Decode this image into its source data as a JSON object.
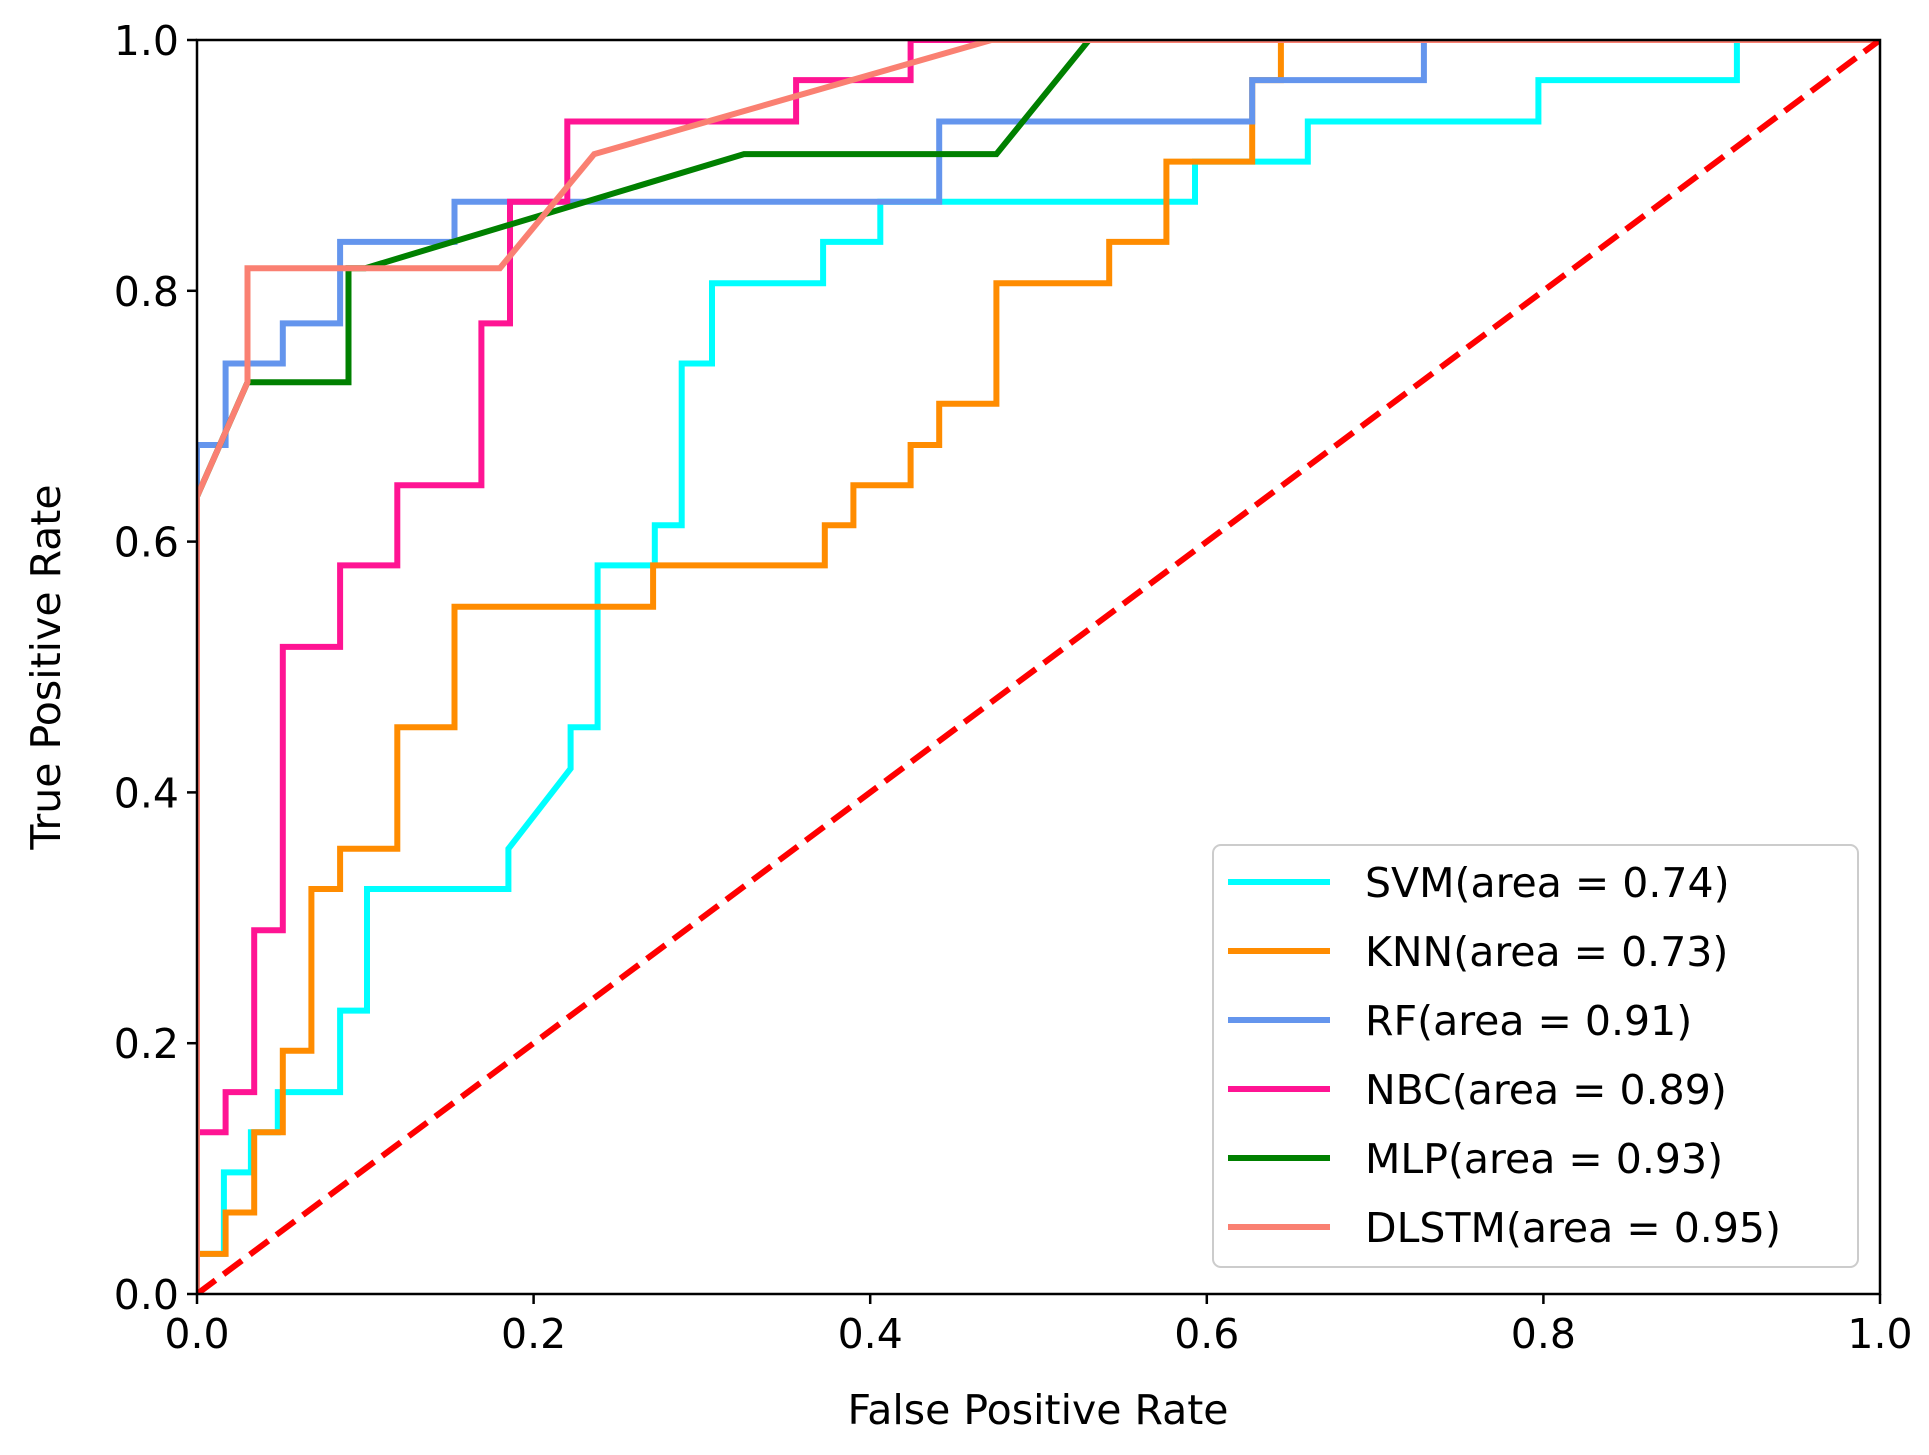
{
  "chart_data": {
    "type": "line",
    "title": "",
    "xlabel": "False Positive Rate",
    "ylabel": "True Positive Rate",
    "xlim": [
      0.0,
      1.0
    ],
    "ylim": [
      0.0,
      1.0
    ],
    "xticks": [
      "0.0",
      "0.2",
      "0.4",
      "0.6",
      "0.8",
      "1.0"
    ],
    "yticks": [
      "0.0",
      "0.2",
      "0.4",
      "0.6",
      "0.8",
      "1.0"
    ],
    "grid": false,
    "legend_position": "lower-right",
    "series": [
      {
        "name": "SVM(area = 0.74)",
        "color": "#00ffff",
        "x": [
          0.0,
          0.0,
          0.016,
          0.016,
          0.032,
          0.032,
          0.048,
          0.048,
          0.085,
          0.085,
          0.101,
          0.101,
          0.185,
          0.185,
          0.222,
          0.222,
          0.238,
          0.238,
          0.272,
          0.272,
          0.288,
          0.288,
          0.306,
          0.306,
          0.372,
          0.372,
          0.406,
          0.406,
          0.593,
          0.593,
          0.66,
          0.66,
          0.797,
          0.797,
          0.915,
          0.915,
          1.0
        ],
        "y": [
          0.0,
          0.032,
          0.032,
          0.097,
          0.097,
          0.129,
          0.129,
          0.161,
          0.161,
          0.226,
          0.226,
          0.323,
          0.323,
          0.355,
          0.419,
          0.452,
          0.452,
          0.581,
          0.581,
          0.613,
          0.613,
          0.742,
          0.742,
          0.806,
          0.806,
          0.839,
          0.839,
          0.871,
          0.871,
          0.903,
          0.903,
          0.935,
          0.935,
          0.968,
          0.968,
          1.0,
          1.0
        ]
      },
      {
        "name": "KNN(area = 0.73)",
        "color": "#ff8c00",
        "x": [
          0.0,
          0.0,
          0.017,
          0.017,
          0.034,
          0.034,
          0.051,
          0.051,
          0.068,
          0.068,
          0.085,
          0.085,
          0.119,
          0.119,
          0.153,
          0.153,
          0.271,
          0.271,
          0.373,
          0.373,
          0.39,
          0.39,
          0.424,
          0.424,
          0.441,
          0.441,
          0.475,
          0.475,
          0.542,
          0.542,
          0.576,
          0.576,
          0.627,
          0.627,
          0.644,
          0.644,
          1.0
        ],
        "y": [
          0.0,
          0.032,
          0.032,
          0.065,
          0.065,
          0.129,
          0.129,
          0.194,
          0.194,
          0.323,
          0.323,
          0.355,
          0.355,
          0.452,
          0.452,
          0.548,
          0.548,
          0.581,
          0.581,
          0.613,
          0.613,
          0.645,
          0.645,
          0.677,
          0.677,
          0.71,
          0.71,
          0.806,
          0.806,
          0.839,
          0.839,
          0.903,
          0.903,
          0.968,
          0.968,
          1.0,
          1.0
        ]
      },
      {
        "name": "RF(area = 0.91)",
        "color": "#6495ed",
        "x": [
          0.0,
          0.0,
          0.017,
          0.017,
          0.051,
          0.051,
          0.085,
          0.085,
          0.153,
          0.153,
          0.441,
          0.441,
          0.627,
          0.627,
          0.729,
          0.729,
          1.0
        ],
        "y": [
          0.0,
          0.677,
          0.677,
          0.742,
          0.742,
          0.774,
          0.774,
          0.839,
          0.839,
          0.871,
          0.871,
          0.935,
          0.935,
          0.968,
          0.968,
          1.0,
          1.0
        ]
      },
      {
        "name": "NBC(area = 0.89)",
        "color": "#ff1493",
        "x": [
          0.0,
          0.0,
          0.017,
          0.017,
          0.034,
          0.034,
          0.051,
          0.051,
          0.085,
          0.085,
          0.119,
          0.119,
          0.169,
          0.169,
          0.186,
          0.186,
          0.22,
          0.22,
          0.356,
          0.356,
          0.424,
          0.424,
          1.0
        ],
        "y": [
          0.0,
          0.129,
          0.129,
          0.161,
          0.161,
          0.29,
          0.29,
          0.516,
          0.516,
          0.581,
          0.581,
          0.645,
          0.645,
          0.774,
          0.774,
          0.871,
          0.871,
          0.935,
          0.935,
          0.968,
          0.968,
          1.0,
          1.0
        ]
      },
      {
        "name": "MLP(area = 0.93)",
        "color": "#008000",
        "x": [
          0.0,
          0.0,
          0.03,
          0.09,
          0.09,
          0.1,
          0.325,
          0.475,
          0.53,
          1.0
        ],
        "y": [
          0.0,
          0.636,
          0.727,
          0.727,
          0.818,
          0.818,
          0.909,
          0.909,
          1.0,
          1.0
        ],
        "note_free": true
      },
      {
        "name": "DLSTM(area = 0.95)",
        "color": "#fa8072",
        "x": [
          0.0,
          0.0,
          0.03,
          0.03,
          0.18,
          0.236,
          0.472,
          1.0
        ],
        "y": [
          0.0,
          0.636,
          0.727,
          0.818,
          0.818,
          0.909,
          1.0,
          1.0
        ]
      }
    ],
    "reference_line": {
      "color": "#ff0000",
      "x": [
        0.0,
        1.0
      ],
      "y": [
        0.0,
        1.0
      ]
    }
  }
}
